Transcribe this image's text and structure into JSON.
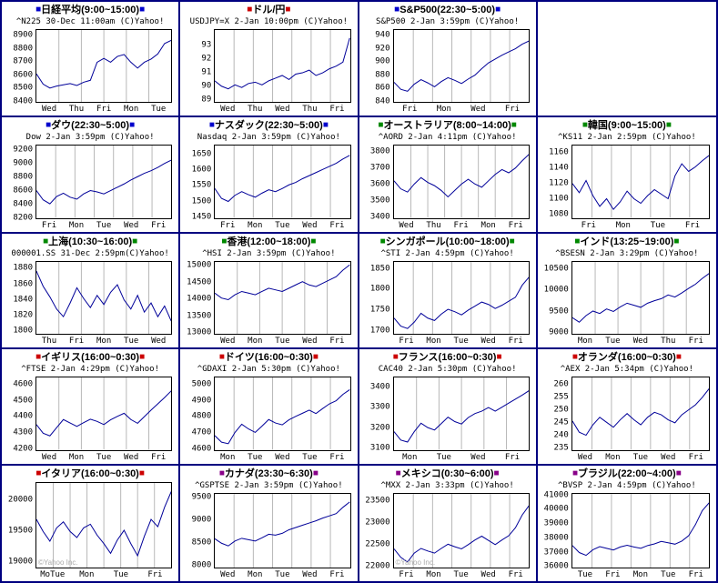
{
  "marker_char": "■",
  "watermark_text": "©Yahoo Inc.",
  "colors": {
    "blue": "#0000cc",
    "red": "#cc0000",
    "green": "#008800",
    "purple": "#880088",
    "line": "#000099",
    "grid": "#b8b8b8",
    "plot_border": "#000000",
    "cell_border": "#000080"
  },
  "layout": {
    "rows": 5,
    "cols": 4
  },
  "chart_data": [
    {
      "type": "line",
      "row": 0,
      "col": 0,
      "marker_color": "blue",
      "title": "日経平均(9:00~15:00)",
      "subtitle": "^N225 30-Dec 11:00am (C)Yahoo!",
      "yticks": [
        8900,
        8800,
        8700,
        8600,
        8500,
        8400
      ],
      "ylim": [
        8390,
        8950
      ],
      "xlabels": [
        "Wed",
        "Thu",
        "Fri",
        "Mon",
        "Tue"
      ],
      "n_seg": 6,
      "watermark": false,
      "values": [
        8610,
        8530,
        8500,
        8515,
        8525,
        8535,
        8520,
        8545,
        8560,
        8700,
        8730,
        8700,
        8745,
        8760,
        8700,
        8655,
        8700,
        8725,
        8765,
        8845,
        8870
      ]
    },
    {
      "type": "line",
      "row": 0,
      "col": 1,
      "marker_color": "red",
      "title": "ドル/円",
      "subtitle": "USDJPY=X 2-Jan 10:00pm (C)Yahoo!",
      "yticks": [
        93,
        92,
        91,
        90,
        89
      ],
      "ylim": [
        88.8,
        94.2
      ],
      "xlabels": [
        "Wed",
        "Thu",
        "Wed",
        "Thu",
        "Fri"
      ],
      "n_seg": 7,
      "watermark": false,
      "values": [
        90.4,
        90.0,
        89.8,
        90.1,
        89.9,
        90.2,
        90.3,
        90.1,
        90.4,
        90.6,
        90.8,
        90.5,
        90.9,
        91.0,
        91.2,
        90.8,
        91.0,
        91.3,
        91.5,
        91.8,
        93.6
      ]
    },
    {
      "type": "line",
      "row": 0,
      "col": 2,
      "marker_color": "blue",
      "title": "S&P500(22:30~5:00)",
      "subtitle": "S&P500 2-Jan 3:59pm (C)Yahoo!",
      "yticks": [
        940,
        920,
        900,
        880,
        860,
        840
      ],
      "ylim": [
        838,
        950
      ],
      "xlabels": [
        "Fri",
        "Mon",
        "Wed",
        "Fri"
      ],
      "n_seg": 7,
      "watermark": false,
      "values": [
        869,
        858,
        855,
        866,
        873,
        868,
        862,
        870,
        876,
        872,
        867,
        874,
        880,
        890,
        899,
        905,
        911,
        916,
        921,
        928,
        933
      ]
    },
    {
      "type": "line",
      "row": 1,
      "col": 0,
      "marker_color": "blue",
      "title": "ダウ(22:30~5:00)",
      "subtitle": "Dow 2-Jan 3:59pm (C)Yahoo!",
      "yticks": [
        9200,
        9000,
        8800,
        8600,
        8400,
        8200
      ],
      "ylim": [
        8190,
        9280
      ],
      "xlabels": [
        "Fri",
        "Mon",
        "Tue",
        "Wed",
        "Fri"
      ],
      "n_seg": 7,
      "watermark": false,
      "values": [
        8600,
        8460,
        8400,
        8510,
        8560,
        8500,
        8470,
        8550,
        8600,
        8580,
        8550,
        8600,
        8650,
        8700,
        8760,
        8810,
        8860,
        8900,
        8950,
        9010,
        9060
      ]
    },
    {
      "type": "line",
      "row": 1,
      "col": 1,
      "marker_color": "blue",
      "title": "ナスダック(22:30~5:00)",
      "subtitle": "Nasdaq 2-Jan 3:59pm (C)Yahoo!",
      "yticks": [
        1650,
        1600,
        1550,
        1500,
        1450
      ],
      "ylim": [
        1445,
        1680
      ],
      "xlabels": [
        "Fri",
        "Mon",
        "Tue",
        "Wed",
        "Fri"
      ],
      "n_seg": 7,
      "watermark": false,
      "values": [
        1540,
        1508,
        1498,
        1518,
        1530,
        1520,
        1512,
        1525,
        1536,
        1530,
        1540,
        1552,
        1560,
        1572,
        1582,
        1592,
        1602,
        1612,
        1622,
        1636,
        1648
      ]
    },
    {
      "type": "line",
      "row": 1,
      "col": 2,
      "marker_color": "green",
      "title": "オーストラリア(8:00~14:00)",
      "subtitle": "^AORD 2-Jan 4:11pm (C)Yahoo!",
      "yticks": [
        3800,
        3700,
        3600,
        3500,
        3400
      ],
      "ylim": [
        3390,
        3840
      ],
      "xlabels": [
        "Wed",
        "Thu",
        "Fri",
        "Mon",
        "Fri"
      ],
      "n_seg": 8,
      "watermark": false,
      "values": [
        3620,
        3570,
        3550,
        3600,
        3640,
        3610,
        3590,
        3560,
        3520,
        3560,
        3600,
        3630,
        3600,
        3580,
        3620,
        3660,
        3690,
        3670,
        3700,
        3745,
        3785
      ]
    },
    {
      "type": "line",
      "row": 1,
      "col": 3,
      "marker_color": "green",
      "title": "韓国(9:00~15:00)",
      "subtitle": "^KS11 2-Jan 2:59pm (C)Yahoo!",
      "yticks": [
        1160,
        1140,
        1120,
        1100,
        1080
      ],
      "ylim": [
        1075,
        1170
      ],
      "xlabels": [
        "Fri",
        "Mon",
        "Tue",
        "Fri"
      ],
      "n_seg": 7,
      "watermark": false,
      "values": [
        1120,
        1108,
        1124,
        1104,
        1090,
        1100,
        1086,
        1096,
        1110,
        1100,
        1094,
        1104,
        1112,
        1106,
        1100,
        1130,
        1146,
        1136,
        1142,
        1150,
        1157
      ]
    },
    {
      "type": "line",
      "row": 2,
      "col": 0,
      "marker_color": "green",
      "title": "上海(10:30~16:00)",
      "subtitle": "000001.SS 31-Dec 2:59pm(C)Yahoo!",
      "yticks": [
        1880,
        1860,
        1840,
        1820,
        1800
      ],
      "ylim": [
        1795,
        1890
      ],
      "xlabels": [
        "Thu",
        "Fri",
        "Mon",
        "Tue",
        "Wed"
      ],
      "n_seg": 6,
      "watermark": false,
      "values": [
        1878,
        1858,
        1844,
        1828,
        1818,
        1836,
        1856,
        1842,
        1830,
        1846,
        1834,
        1850,
        1860,
        1840,
        1828,
        1846,
        1824,
        1836,
        1818,
        1832,
        1812
      ]
    },
    {
      "type": "line",
      "row": 2,
      "col": 1,
      "marker_color": "green",
      "title": "香港(12:00~18:00)",
      "subtitle": "^HSI 2-Jan 3:59pm (C)Yahoo!",
      "yticks": [
        15000,
        14500,
        14000,
        13500,
        13000
      ],
      "ylim": [
        12950,
        15150
      ],
      "xlabels": [
        "Wed",
        "Mon",
        "Tue",
        "Wed",
        "Fri"
      ],
      "n_seg": 6,
      "watermark": false,
      "values": [
        14200,
        14050,
        14000,
        14150,
        14250,
        14200,
        14150,
        14250,
        14350,
        14300,
        14250,
        14350,
        14450,
        14550,
        14450,
        14400,
        14500,
        14600,
        14700,
        14900,
        15060
      ]
    },
    {
      "type": "line",
      "row": 2,
      "col": 2,
      "marker_color": "green",
      "title": "シンガポール(10:00~18:00)",
      "subtitle": "^STI 2-Jan 4:59pm (C)Yahoo!",
      "yticks": [
        1850,
        1800,
        1750,
        1700
      ],
      "ylim": [
        1690,
        1870
      ],
      "xlabels": [
        "Fri",
        "Mon",
        "Tue",
        "Wed",
        "Fri"
      ],
      "n_seg": 7,
      "watermark": false,
      "values": [
        1730,
        1710,
        1704,
        1720,
        1742,
        1730,
        1724,
        1740,
        1752,
        1746,
        1738,
        1750,
        1760,
        1770,
        1764,
        1754,
        1762,
        1772,
        1782,
        1812,
        1832
      ]
    },
    {
      "type": "line",
      "row": 2,
      "col": 3,
      "marker_color": "green",
      "title": "インド(13:25~19:00)",
      "subtitle": "^BSESN 2-Jan 3:29pm (C)Yahoo!",
      "yticks": [
        10500,
        10000,
        9500,
        9000
      ],
      "ylim": [
        8950,
        10700
      ],
      "xlabels": [
        "Mon",
        "Tue",
        "Wed",
        "Thu",
        "Fri"
      ],
      "n_seg": 6,
      "watermark": false,
      "values": [
        9350,
        9240,
        9400,
        9510,
        9450,
        9560,
        9500,
        9610,
        9700,
        9650,
        9600,
        9700,
        9760,
        9810,
        9900,
        9850,
        9950,
        10060,
        10160,
        10300,
        10420
      ]
    },
    {
      "type": "line",
      "row": 3,
      "col": 0,
      "marker_color": "red",
      "title": "イギリス(16:00~0:30)",
      "subtitle": "^FTSE 2-Jan 4:29pm (C)Yahoo!",
      "yticks": [
        4600,
        4500,
        4400,
        4300,
        4200
      ],
      "ylim": [
        4190,
        4650
      ],
      "xlabels": [
        "Wed",
        "Mon",
        "Tue",
        "Wed",
        "Fri"
      ],
      "n_seg": 6,
      "watermark": false,
      "values": [
        4350,
        4295,
        4278,
        4330,
        4382,
        4360,
        4338,
        4362,
        4384,
        4370,
        4350,
        4380,
        4402,
        4422,
        4382,
        4358,
        4400,
        4442,
        4482,
        4522,
        4565
      ]
    },
    {
      "type": "line",
      "row": 3,
      "col": 1,
      "marker_color": "red",
      "title": "ドイツ(16:00~0:30)",
      "subtitle": "^GDAXI 2-Jan 5:30pm (C)Yahoo!",
      "yticks": [
        5000,
        4900,
        4800,
        4700,
        4600
      ],
      "ylim": [
        4590,
        5050
      ],
      "xlabels": [
        "Mon",
        "Tue",
        "Wed",
        "Tue",
        "Fri"
      ],
      "n_seg": 7,
      "watermark": false,
      "values": [
        4680,
        4638,
        4628,
        4700,
        4752,
        4722,
        4700,
        4740,
        4782,
        4760,
        4748,
        4780,
        4802,
        4822,
        4842,
        4820,
        4852,
        4882,
        4902,
        4942,
        4972
      ]
    },
    {
      "type": "line",
      "row": 3,
      "col": 2,
      "marker_color": "red",
      "title": "フランス(16:00~0:30)",
      "subtitle": "CAC40 2-Jan 5:30pm (C)Yahoo!",
      "yticks": [
        3400,
        3300,
        3200,
        3100
      ],
      "ylim": [
        3090,
        3450
      ],
      "xlabels": [
        "Mon",
        "Tue",
        "Wed",
        "Fri"
      ],
      "n_seg": 6,
      "watermark": false,
      "values": [
        3180,
        3138,
        3128,
        3180,
        3222,
        3200,
        3188,
        3220,
        3252,
        3230,
        3218,
        3250,
        3270,
        3282,
        3300,
        3282,
        3302,
        3322,
        3342,
        3362,
        3384
      ]
    },
    {
      "type": "line",
      "row": 3,
      "col": 3,
      "marker_color": "red",
      "title": "オランダ(16:00~0:30)",
      "subtitle": "^AEX 2-Jan 5:34pm (C)Yahoo!",
      "yticks": [
        260,
        255,
        250,
        245,
        240,
        235
      ],
      "ylim": [
        234,
        263
      ],
      "xlabels": [
        "Wed",
        "Mon",
        "Tue",
        "Wed",
        "Fri"
      ],
      "n_seg": 7,
      "watermark": false,
      "values": [
        245.5,
        241,
        239.8,
        244,
        247,
        245,
        243,
        246,
        248.5,
        246,
        244,
        247,
        249,
        248,
        246,
        244.8,
        248,
        250,
        252,
        255,
        258.5
      ]
    },
    {
      "type": "line",
      "row": 4,
      "col": 0,
      "marker_color": "red",
      "title": "イタリア(16:00~0:30)",
      "subtitle": "",
      "yticks": [
        20000,
        19500,
        19000
      ],
      "ylim": [
        18900,
        20300
      ],
      "xlabels": [
        "MoTue",
        "Mon",
        "Tue",
        "Fri"
      ],
      "n_seg": 8,
      "watermark": true,
      "values": [
        19700,
        19500,
        19340,
        19560,
        19660,
        19500,
        19400,
        19560,
        19620,
        19440,
        19300,
        19140,
        19360,
        19520,
        19300,
        19100,
        19420,
        19700,
        19580,
        19900,
        20160
      ]
    },
    {
      "type": "line",
      "row": 4,
      "col": 1,
      "marker_color": "purple",
      "title": "カナダ(23:30~6:30)",
      "subtitle": "^GSPTSE 2-Jan 3:59pm (C)Yahoo!",
      "yticks": [
        9500,
        9000,
        8500,
        8000
      ],
      "ylim": [
        7950,
        9600
      ],
      "xlabels": [
        "Wed",
        "Mon",
        "Tue",
        "Wed",
        "Fri"
      ],
      "n_seg": 7,
      "watermark": false,
      "values": [
        8600,
        8500,
        8440,
        8550,
        8610,
        8580,
        8550,
        8620,
        8700,
        8680,
        8720,
        8800,
        8850,
        8900,
        8950,
        9000,
        9060,
        9110,
        9160,
        9300,
        9420
      ]
    },
    {
      "type": "line",
      "row": 4,
      "col": 2,
      "marker_color": "purple",
      "title": "メキシコ(0:30~6:00)",
      "subtitle": "^MXX 2-Jan 3:33pm (C)Yahoo!",
      "yticks": [
        23500,
        23000,
        22500,
        22000
      ],
      "ylim": [
        21950,
        23700
      ],
      "xlabels": [
        "Fri",
        "Mon",
        "Tue",
        "Wed",
        "Fri"
      ],
      "n_seg": 7,
      "watermark": true,
      "values": [
        22400,
        22200,
        22090,
        22300,
        22410,
        22350,
        22300,
        22410,
        22510,
        22450,
        22400,
        22500,
        22610,
        22700,
        22600,
        22500,
        22610,
        22710,
        22900,
        23200,
        23420
      ]
    },
    {
      "type": "line",
      "row": 4,
      "col": 3,
      "marker_color": "purple",
      "title": "ブラジル(22:00~4:00)",
      "subtitle": "^BVSP 2-Jan 4:59pm (C)Yahoo!",
      "yticks": [
        41000,
        40000,
        39000,
        38000,
        37000,
        36000
      ],
      "ylim": [
        35900,
        41200
      ],
      "xlabels": [
        "Tue",
        "Fri",
        "Mon",
        "Tue",
        "Fri"
      ],
      "n_seg": 7,
      "watermark": false,
      "values": [
        37500,
        37000,
        36800,
        37200,
        37420,
        37300,
        37180,
        37400,
        37520,
        37400,
        37300,
        37500,
        37620,
        37800,
        37700,
        37600,
        37820,
        38200,
        39000,
        40000,
        40560
      ]
    }
  ]
}
